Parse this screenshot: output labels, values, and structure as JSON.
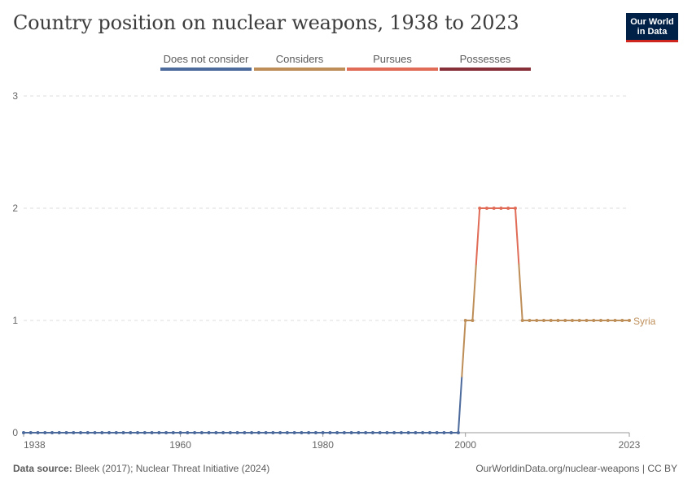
{
  "header": {
    "title": "Country position on nuclear weapons, 1938 to 2023",
    "logo_line1": "Our World",
    "logo_line2": "in Data"
  },
  "legend": [
    {
      "label": "Does not consider",
      "color": "#4c6a9c"
    },
    {
      "label": "Considers",
      "color": "#be8e58"
    },
    {
      "label": "Pursues",
      "color": "#e06c57"
    },
    {
      "label": "Possesses",
      "color": "#883039"
    }
  ],
  "footer": {
    "source_label": "Data source:",
    "source_text": "Bleek (2017); Nuclear Threat Initiative (2024)",
    "url_text": "OurWorldinData.org/nuclear-weapons | CC BY"
  },
  "chart_data": {
    "type": "line",
    "title": "Country position on nuclear weapons, 1938 to 2023",
    "xlabel": "",
    "ylabel": "",
    "xlim": [
      1938,
      2023
    ],
    "ylim": [
      0,
      3
    ],
    "x_ticks": [
      1938,
      1960,
      1980,
      2000,
      2023
    ],
    "y_ticks": [
      0,
      1,
      2,
      3
    ],
    "grid": true,
    "series": [
      {
        "name": "Syria",
        "start_year": 1938,
        "end_year": 2023,
        "values": [
          0,
          0,
          0,
          0,
          0,
          0,
          0,
          0,
          0,
          0,
          0,
          0,
          0,
          0,
          0,
          0,
          0,
          0,
          0,
          0,
          0,
          0,
          0,
          0,
          0,
          0,
          0,
          0,
          0,
          0,
          0,
          0,
          0,
          0,
          0,
          0,
          0,
          0,
          0,
          0,
          0,
          0,
          0,
          0,
          0,
          0,
          0,
          0,
          0,
          0,
          0,
          0,
          0,
          0,
          0,
          0,
          0,
          0,
          0,
          0,
          0,
          0,
          1,
          1,
          2,
          2,
          2,
          2,
          2,
          2,
          1,
          1,
          1,
          1,
          1,
          1,
          1,
          1,
          1,
          1,
          1,
          1,
          1,
          1,
          1,
          1
        ]
      }
    ]
  }
}
